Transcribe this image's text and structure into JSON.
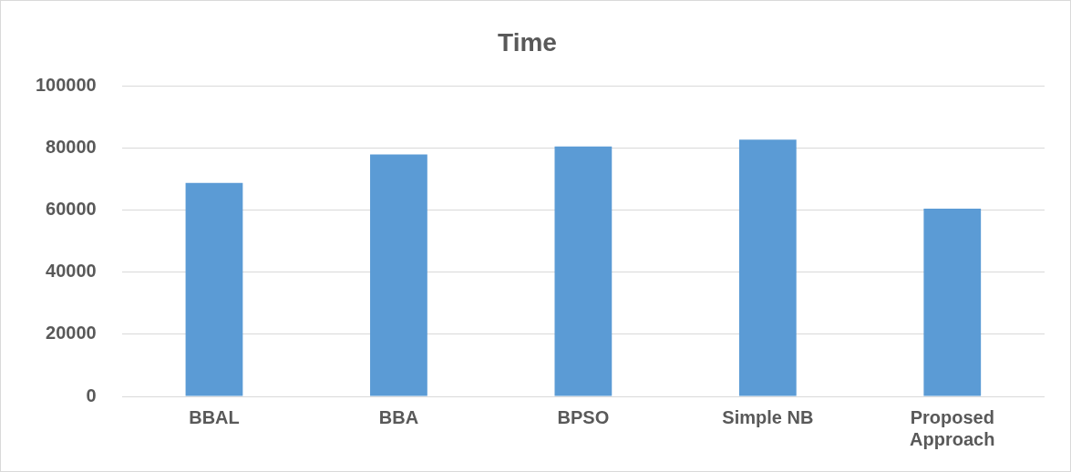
{
  "chart_data": {
    "type": "bar",
    "title": "Time",
    "categories": [
      "BBAL",
      "BBA",
      "BPSO",
      "Simple NB",
      "Proposed Approach"
    ],
    "values": [
      68800,
      78000,
      80600,
      82800,
      60500
    ],
    "color": "#5b9bd5",
    "ylim": [
      0,
      100000
    ],
    "yticks": [
      0,
      20000,
      40000,
      60000,
      80000,
      100000
    ],
    "grid": "y"
  }
}
